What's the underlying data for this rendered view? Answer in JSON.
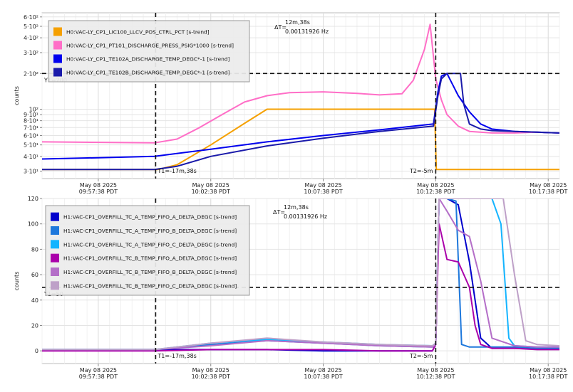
{
  "chart_data": [
    {
      "type": "line",
      "ylabel": "counts",
      "yscale": "log",
      "ylim": [
        26,
        650
      ],
      "x_range_minutes": [
        0,
        46
      ],
      "ytick_labels": [
        "6·10²",
        "5·10²",
        "4·10²",
        "3·10²",
        "2·10²",
        "10²",
        "9·10¹",
        "8·10¹",
        "7·10¹",
        "6·10¹",
        "5·10¹",
        "4·10¹",
        "3·10¹"
      ],
      "ytick_values": [
        600,
        500,
        400,
        300,
        200,
        100,
        90,
        80,
        70,
        60,
        50,
        40,
        30
      ],
      "xticks": [
        {
          "x_min": 5,
          "date": "May 08 2025",
          "time": "09:57:38 PDT"
        },
        {
          "x_min": 15,
          "date": "May 08 2025",
          "time": "10:02:38 PDT"
        },
        {
          "x_min": 25,
          "date": "May 08 2025",
          "time": "10:07:38 PDT"
        },
        {
          "x_min": 35,
          "date": "May 08 2025",
          "time": "10:12:38 PDT"
        },
        {
          "x_min": 45,
          "date": "May 08 2025",
          "time": "10:17:38 PDT"
        }
      ],
      "cursors": {
        "t1_label": "T1=-17m,38s",
        "t1_x_min": 10.1,
        "t2_label": "T2=-5m",
        "t2_x_min": 35,
        "y1_label": "Y1=200",
        "y1_value": 200,
        "delta_t": "ΔT=",
        "delta_value": "12m,38s",
        "delta_freq": "0.00131926 Hz"
      },
      "series": [
        {
          "name": "H0:VAC-LY_CP1_LIC100_LLCV_POS_CTRL_PCT [s-trend]",
          "color": "#f5a000",
          "x": [
            0,
            10.3,
            12,
            15,
            18,
            20,
            25,
            30,
            33,
            34.9,
            35.05,
            46
          ],
          "y": [
            31,
            31,
            34,
            50,
            76,
            100,
            100,
            100,
            100,
            100,
            31,
            31
          ]
        },
        {
          "name": "H0:VAC-LY_CP1_PT101_DISCHARGE_PRESS_PSIG*1000 [s-trend]",
          "color": "#ff6ec7",
          "x": [
            0,
            10,
            12,
            14,
            16,
            18,
            20,
            22,
            25,
            28,
            30,
            32,
            33,
            34,
            34.5,
            35,
            35.5,
            36,
            37,
            38,
            40,
            42,
            44,
            46
          ],
          "y": [
            53,
            52,
            56,
            70,
            90,
            115,
            130,
            138,
            140,
            136,
            132,
            135,
            175,
            320,
            520,
            180,
            120,
            90,
            72,
            65,
            63,
            63,
            64,
            63
          ]
        },
        {
          "name": "H0:VAC-LY_CP1_TE102A_DISCHARGE_TEMP_DEGC*-1 [s-trend]",
          "color": "#0000ee",
          "x": [
            0,
            5,
            10,
            15,
            20,
            25,
            30,
            34.8,
            35.2,
            35.5,
            36,
            37,
            38,
            39,
            40,
            42,
            44,
            46
          ],
          "y": [
            38,
            39,
            40,
            46,
            53,
            60,
            67,
            75,
            140,
            190,
            200,
            130,
            95,
            75,
            68,
            65,
            64,
            63
          ]
        },
        {
          "name": "H0:VAC-LY_CP1_TE102B_DISCHARGE_TEMP_DEGC*-1 [s-trend]",
          "color": "#1a1aaa",
          "x": [
            0,
            5,
            10,
            12,
            15,
            20,
            25,
            30,
            34.8,
            35.2,
            35.5,
            36,
            36.5,
            37,
            37.2,
            37.5,
            38,
            39,
            40,
            42,
            44,
            46
          ],
          "y": [
            31,
            31,
            31,
            33,
            40,
            49,
            57,
            65,
            72,
            130,
            180,
            200,
            200,
            200,
            200,
            110,
            75,
            68,
            66,
            65,
            64,
            63
          ]
        }
      ]
    },
    {
      "type": "line",
      "ylabel": "counts",
      "yscale": "linear",
      "ylim": [
        -10,
        120
      ],
      "x_range_minutes": [
        0,
        46
      ],
      "yticks": [
        0,
        20,
        40,
        60,
        80,
        100,
        120
      ],
      "xticks": [
        {
          "x_min": 5,
          "date": "May 08 2025",
          "time": "09:57:38 PDT"
        },
        {
          "x_min": 15,
          "date": "May 08 2025",
          "time": "10:02:38 PDT"
        },
        {
          "x_min": 25,
          "date": "May 08 2025",
          "time": "10:07:38 PDT"
        },
        {
          "x_min": 35,
          "date": "May 08 2025",
          "time": "10:12:38 PDT"
        },
        {
          "x_min": 45,
          "date": "May 08 2025",
          "time": "10:17:38 PDT"
        }
      ],
      "cursors": {
        "t1_label": "T1=-17m,38s",
        "t1_x_min": 10.1,
        "t2_label": "T2=-5m",
        "t2_x_min": 35,
        "y1_label": "Y1=50",
        "y1_value": 50,
        "delta_t": "ΔT=",
        "delta_value": "12m,38s",
        "delta_freq": "0.00131926 Hz"
      },
      "series": [
        {
          "name": "H1:VAC-CP1_OVERFILL_TC_A_TEMP_FIFO_A_DELTA_DEGC [s-trend]",
          "color": "#0000cc",
          "x": [
            0,
            10,
            15,
            20,
            25,
            30,
            34.7,
            35,
            35.3,
            36,
            37,
            38,
            38.5,
            39,
            40,
            42,
            44,
            46
          ],
          "y": [
            1,
            1,
            1,
            1,
            0,
            0,
            0,
            5,
            120,
            120,
            115,
            70,
            40,
            10,
            2,
            2,
            2,
            2
          ]
        },
        {
          "name": "H1:VAC-CP1_OVERFILL_TC_A_TEMP_FIFO_B_DELTA_DEGC [s-trend]",
          "color": "#1e78dc",
          "x": [
            0,
            10,
            15,
            20,
            25,
            30,
            34.7,
            35,
            35.3,
            36,
            36.8,
            37.3,
            38,
            39,
            40,
            42,
            44,
            46
          ],
          "y": [
            1,
            1,
            5,
            8,
            6,
            4,
            3,
            5,
            120,
            120,
            118,
            5,
            3,
            3,
            3,
            3,
            2,
            2
          ]
        },
        {
          "name": "H1:VAC-CP1_OVERFILL_TC_A_TEMP_FIFO_C_DELTA_DEGC [s-trend]",
          "color": "#14b4ff",
          "x": [
            0,
            10,
            15,
            20,
            25,
            30,
            34.7,
            35,
            35.3,
            36,
            37,
            38,
            39,
            40,
            40.8,
            41.5,
            42,
            44,
            46
          ],
          "y": [
            1,
            1,
            6,
            9,
            7,
            5,
            4,
            6,
            120,
            120,
            120,
            120,
            120,
            120,
            100,
            10,
            4,
            3,
            3
          ]
        },
        {
          "name": "H1:VAC-CP1_OVERFILL_TC_B_TEMP_FIFO_A_DELTA_DEGC [s-trend]",
          "color": "#aa00aa",
          "x": [
            0,
            10,
            15,
            20,
            25,
            30,
            34.7,
            35,
            35.3,
            36,
            37,
            38,
            38.5,
            39,
            40,
            42,
            44,
            46
          ],
          "y": [
            0,
            0,
            1,
            1,
            1,
            0,
            0,
            5,
            100,
            72,
            70,
            50,
            20,
            5,
            2,
            2,
            1,
            1
          ]
        },
        {
          "name": "H1:VAC-CP1_OVERFILL_TC_B_TEMP_FIFO_B_DELTA_DEGC [s-trend]",
          "color": "#b46ec8",
          "x": [
            0,
            10,
            15,
            20,
            25,
            30,
            34.7,
            35,
            35.3,
            36,
            37,
            38,
            39,
            40,
            42,
            44,
            46
          ],
          "y": [
            1,
            1,
            4,
            8,
            6,
            4,
            3,
            5,
            120,
            110,
            95,
            90,
            55,
            10,
            4,
            3,
            3
          ]
        },
        {
          "name": "H1:VAC-CP1_OVERFILL_TC_B_TEMP_FIFO_C_DELTA_DEGC [s-trend]",
          "color": "#bea0c8",
          "x": [
            0,
            10,
            15,
            20,
            25,
            30,
            34.7,
            35,
            35.3,
            36,
            38,
            40,
            41,
            42,
            43,
            44,
            46
          ],
          "y": [
            1,
            1,
            6,
            10,
            7,
            5,
            4,
            6,
            120,
            120,
            120,
            120,
            120,
            60,
            8,
            5,
            4
          ]
        }
      ]
    }
  ]
}
